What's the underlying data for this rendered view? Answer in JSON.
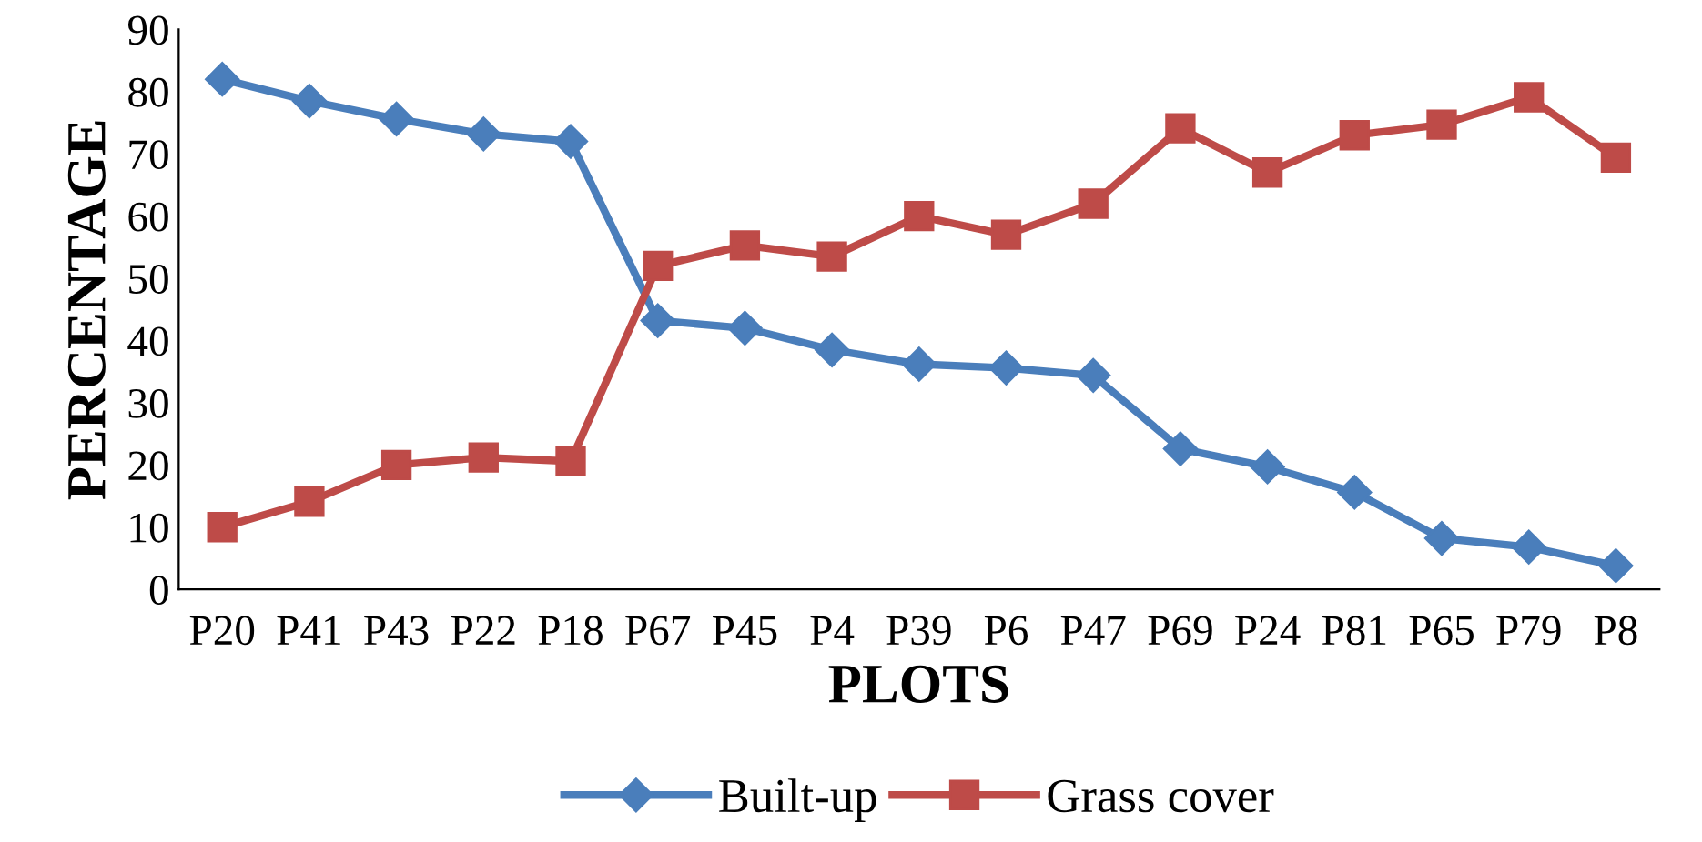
{
  "chart_data": {
    "type": "line",
    "xlabel": "PLOTS",
    "ylabel": "PERCENTAGE",
    "categories": [
      "P20",
      "P41",
      "P43",
      "P22",
      "P18",
      "P67",
      "P45",
      "P4",
      "P39",
      "P6",
      "P47",
      "P69",
      "P24",
      "P81",
      "P65",
      "P79",
      "P8"
    ],
    "series": [
      {
        "name": "Built-up",
        "color": "#4a7ebb",
        "marker": "diamond",
        "values": [
          82,
          78.5,
          75.6,
          73.2,
          72,
          43.2,
          42,
          38.5,
          36.2,
          35.6,
          34.4,
          22.6,
          19.7,
          15.6,
          8.2,
          6.8,
          3.8
        ]
      },
      {
        "name": "Grass cover",
        "color": "#be4b48",
        "marker": "square",
        "values": [
          10,
          14.1,
          20,
          21.2,
          20.6,
          52,
          55.3,
          53.5,
          60,
          57,
          62,
          74.1,
          67,
          73,
          74.7,
          79.1,
          69.4
        ]
      }
    ],
    "ylim": [
      0,
      90
    ],
    "yticks": [
      0,
      10,
      20,
      30,
      40,
      50,
      60,
      70,
      80,
      90
    ],
    "grid": false,
    "legend": "bottom",
    "line_style": "solid"
  }
}
